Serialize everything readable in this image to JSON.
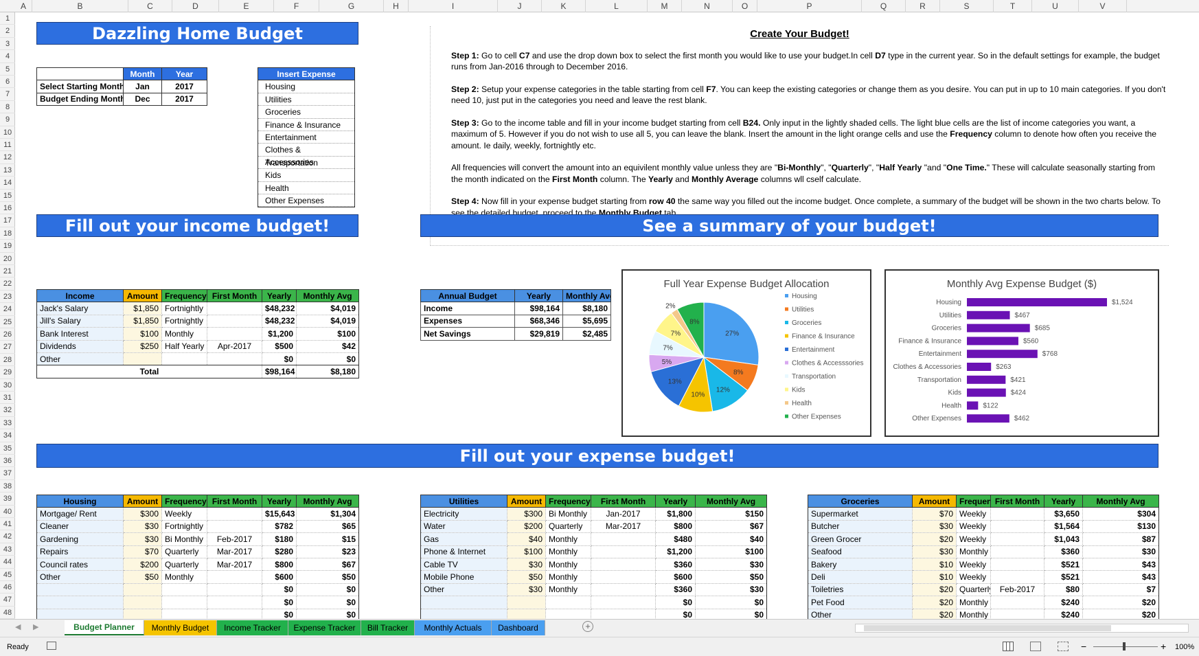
{
  "app": {
    "status": "Ready",
    "zoom": "100%"
  },
  "columns": [
    "A",
    "B",
    "C",
    "D",
    "E",
    "F",
    "G",
    "H",
    "I",
    "J",
    "K",
    "L",
    "M",
    "N",
    "O",
    "P",
    "Q",
    "R",
    "S",
    "T",
    "U",
    "V"
  ],
  "rows": [
    "1",
    "2",
    "3",
    "4",
    "5",
    "6",
    "7",
    "8",
    "9",
    "10",
    "11",
    "12",
    "13",
    "14",
    "15",
    "16",
    "17",
    "18",
    "19",
    "20",
    "21",
    "22",
    "23",
    "24",
    "25",
    "26",
    "27",
    "28",
    "29",
    "30",
    "31",
    "32",
    "33",
    "34",
    "35",
    "36",
    "37",
    "38",
    "39",
    "40",
    "41",
    "42",
    "43",
    "44",
    "45",
    "46",
    "47",
    "48"
  ],
  "title": "Dazzling Home Budget",
  "start": {
    "h_month": "Month",
    "h_year": "Year",
    "r1": "Select Starting Month",
    "r1m": "Jan",
    "r1y": "2017",
    "r2": "Budget Ending Month",
    "r2m": "Dec",
    "r2y": "2017"
  },
  "categories": {
    "header": "Insert Expense Categories",
    "items": [
      "Housing",
      "Utilities",
      "Groceries",
      "Finance & Insurance",
      "Entertainment",
      "Clothes & Accesssories",
      "Transportation",
      "Kids",
      "Health",
      "Other Expenses"
    ]
  },
  "instructions": {
    "title": "Create Your Budget!",
    "p1": [
      [
        "b",
        "Step 1:"
      ],
      [
        "t",
        " Go to cell "
      ],
      [
        "b",
        "C7"
      ],
      [
        "t",
        " and use the drop down box to select the first month you would like to use your budget.In cell "
      ],
      [
        "b",
        "D7"
      ],
      [
        "t",
        " type in the current year. So in the default settings for example, the budget runs from Jan-2016 through to December 2016."
      ]
    ],
    "p2": [
      [
        "b",
        "Step 2:"
      ],
      [
        "t",
        " Setup your expense categories in the table starting from cell "
      ],
      [
        "b",
        "F7"
      ],
      [
        "t",
        ". You can keep the existing categories or change them as you desire. You can put in up to 10 main categories. If you don't need 10, just put in the categories you need and leave the rest blank."
      ]
    ],
    "p3": [
      [
        "b",
        "Step 3:"
      ],
      [
        "t",
        " Go to the income table and fill in your income budget starting from cell "
      ],
      [
        "b",
        "B24."
      ],
      [
        "t",
        " Only input in the lightly shaded cells. The light blue cells are the list of income categories you want, a maximum of 5. However if you do not wish to use all 5, you can leave the blank. Insert the amount in the light orange cells and use the "
      ],
      [
        "b",
        "Frequency"
      ],
      [
        "t",
        " column to denote how often you receive the amount. Ie daily, weekly, fortnightly etc."
      ]
    ],
    "p4": [
      [
        "t",
        "All frequencies will convert the amount into an equivilent monthly value unless they are \""
      ],
      [
        "b",
        "Bi-Monthly"
      ],
      [
        "t",
        "\", \""
      ],
      [
        "b",
        "Quarterly"
      ],
      [
        "t",
        "\", \""
      ],
      [
        "b",
        "Half Yearly "
      ],
      [
        "t",
        "\"and \""
      ],
      [
        "b",
        "One Time."
      ],
      [
        "t",
        "\" These will calculate seasonally starting from the month indicated on the "
      ],
      [
        "b",
        "First Month"
      ],
      [
        "t",
        " column. The "
      ],
      [
        "b",
        "Yearly"
      ],
      [
        "t",
        " and "
      ],
      [
        "b",
        "Monthly Average"
      ],
      [
        "t",
        " columns wll cself calculate."
      ]
    ],
    "p5": [
      [
        "b",
        "Step 4:"
      ],
      [
        "t",
        " Now fill in your expense budget starting from "
      ],
      [
        "b",
        "row 40"
      ],
      [
        "t",
        " the same way you filled out the income budget. Once complete, a summary of the budget will be shown in the two charts below. To see the detailed budget, proceed to the "
      ],
      [
        "b",
        "Monthly Budget"
      ],
      [
        "t",
        " tab."
      ]
    ]
  },
  "income_banner": "Fill out your income budget!",
  "summary_banner": "See a summary of your budget!",
  "expense_banner": "Fill out your expense budget!",
  "income": {
    "headers": [
      "Income",
      "Amount",
      "Frequency",
      "First Month",
      "Yearly",
      "Monthly Avg"
    ],
    "rows": [
      [
        "Jack's Salary",
        "$1,850",
        "Fortnightly",
        "",
        "$48,232",
        "$4,019"
      ],
      [
        "Jill's Salary",
        "$1,850",
        "Fortnightly",
        "",
        "$48,232",
        "$4,019"
      ],
      [
        "Bank Interest",
        "$100",
        "Monthly",
        "",
        "$1,200",
        "$100"
      ],
      [
        "Dividends",
        "$250",
        "Half Yearly",
        "Apr-2017",
        "$500",
        "$42"
      ],
      [
        "Other",
        "",
        "",
        "",
        "$0",
        "$0"
      ]
    ],
    "total": [
      "Total",
      "$98,164",
      "$8,180"
    ]
  },
  "annual": {
    "headers": [
      "Annual Budget",
      "Yearly",
      "Monthly Avg"
    ],
    "rows": [
      [
        "Income",
        "$98,164",
        "$8,180"
      ],
      [
        "Expenses",
        "$68,346",
        "$5,695"
      ],
      [
        "Net Savings",
        "$29,819",
        "$2,485"
      ]
    ]
  },
  "chart_data": [
    {
      "type": "pie",
      "title": "Full Year Expense Budget Allocation",
      "legend": "right",
      "categories": [
        "Housing",
        "Utilities",
        "Groceries",
        "Finance & Insurance",
        "Entertainment",
        "Clothes & Accesssories",
        "Transportation",
        "Kids",
        "Health",
        "Other Expenses"
      ],
      "values": [
        27,
        8,
        12,
        10,
        13,
        5,
        7,
        7,
        2,
        8
      ],
      "labels": [
        "27%",
        "8%",
        "12%",
        "10%",
        "13%",
        "5%",
        "7%",
        "7%",
        "2%",
        "8%"
      ],
      "colors": [
        "#4a9ff0",
        "#f47a1f",
        "#19b8e8",
        "#f5c400",
        "#2a6fd6",
        "#d8a8f0",
        "#e8f8ff",
        "#fff58a",
        "#f4c88a",
        "#22b14c"
      ]
    },
    {
      "type": "bar",
      "orientation": "horizontal",
      "title": "Monthly Avg Expense Budget ($)",
      "categories": [
        "Housing",
        "Utilities",
        "Groceries",
        "Finance & Insurance",
        "Entertainment",
        "Clothes & Accessories",
        "Transportation",
        "Kids",
        "Health",
        "Other Expenses"
      ],
      "values": [
        1524,
        467,
        685,
        560,
        768,
        263,
        421,
        424,
        122,
        462
      ],
      "labels": [
        "$1,524",
        "$467",
        "$685",
        "$560",
        "$768",
        "$263",
        "$421",
        "$424",
        "$122",
        "$462"
      ],
      "color": "#6a12b4"
    }
  ],
  "exp_housing": {
    "headers": [
      "Housing",
      "Amount",
      "Frequency",
      "First Month",
      "Yearly",
      "Monthly Avg"
    ],
    "rows": [
      [
        "Mortgage/ Rent",
        "$300",
        "Weekly",
        "",
        "$15,643",
        "$1,304"
      ],
      [
        "Cleaner",
        "$30",
        "Fortnightly",
        "",
        "$782",
        "$65"
      ],
      [
        "Gardening",
        "$30",
        "Bi Monthly",
        "Feb-2017",
        "$180",
        "$15"
      ],
      [
        "Repairs",
        "$70",
        "Quarterly",
        "Mar-2017",
        "$280",
        "$23"
      ],
      [
        "Council rates",
        "$200",
        "Quarterly",
        "Mar-2017",
        "$800",
        "$67"
      ],
      [
        "Other",
        "$50",
        "Monthly",
        "",
        "$600",
        "$50"
      ],
      [
        "",
        "",
        "",
        "",
        "$0",
        "$0"
      ],
      [
        "",
        "",
        "",
        "",
        "$0",
        "$0"
      ],
      [
        "",
        "",
        "",
        "",
        "$0",
        "$0"
      ]
    ]
  },
  "exp_utilities": {
    "headers": [
      "Utilities",
      "Amount",
      "Frequency",
      "First Month",
      "Yearly",
      "Monthly Avg"
    ],
    "rows": [
      [
        "Electricity",
        "$300",
        "Bi Monthly",
        "Jan-2017",
        "$1,800",
        "$150"
      ],
      [
        "Water",
        "$200",
        "Quarterly",
        "Mar-2017",
        "$800",
        "$67"
      ],
      [
        "Gas",
        "$40",
        "Monthly",
        "",
        "$480",
        "$40"
      ],
      [
        "Phone & Internet",
        "$100",
        "Monthly",
        "",
        "$1,200",
        "$100"
      ],
      [
        "Cable TV",
        "$30",
        "Monthly",
        "",
        "$360",
        "$30"
      ],
      [
        "Mobile Phone",
        "$50",
        "Monthly",
        "",
        "$600",
        "$50"
      ],
      [
        "Other",
        "$30",
        "Monthly",
        "",
        "$360",
        "$30"
      ],
      [
        "",
        "",
        "",
        "",
        "$0",
        "$0"
      ],
      [
        "",
        "",
        "",
        "",
        "$0",
        "$0"
      ]
    ]
  },
  "exp_groceries": {
    "headers": [
      "Groceries",
      "Amount",
      "Frequency",
      "First Month",
      "Yearly",
      "Monthly Avg"
    ],
    "rows": [
      [
        "Supermarket",
        "$70",
        "Weekly",
        "",
        "$3,650",
        "$304"
      ],
      [
        "Butcher",
        "$30",
        "Weekly",
        "",
        "$1,564",
        "$130"
      ],
      [
        "Green Grocer",
        "$20",
        "Weekly",
        "",
        "$1,043",
        "$87"
      ],
      [
        "Seafood",
        "$30",
        "Monthly",
        "",
        "$360",
        "$30"
      ],
      [
        "Bakery",
        "$10",
        "Weekly",
        "",
        "$521",
        "$43"
      ],
      [
        "Deli",
        "$10",
        "Weekly",
        "",
        "$521",
        "$43"
      ],
      [
        "Toiletries",
        "$20",
        "Quarterly",
        "Feb-2017",
        "$80",
        "$7"
      ],
      [
        "Pet Food",
        "$20",
        "Monthly",
        "",
        "$240",
        "$20"
      ],
      [
        "Other",
        "$20",
        "Monthly",
        "",
        "$240",
        "$20"
      ]
    ]
  },
  "tabs": [
    {
      "label": "Budget Planner",
      "color": "#ffffff"
    },
    {
      "label": "Monthly Budget",
      "color": "#f5c400"
    },
    {
      "label": "Income Tracker",
      "color": "#22b14c"
    },
    {
      "label": "Expense Tracker",
      "color": "#22b14c"
    },
    {
      "label": "Bill Tracker",
      "color": "#22b14c"
    },
    {
      "label": "Monthly Actuals",
      "color": "#4a9ff0"
    },
    {
      "label": "Dashboard",
      "color": "#4a9ff0"
    }
  ]
}
